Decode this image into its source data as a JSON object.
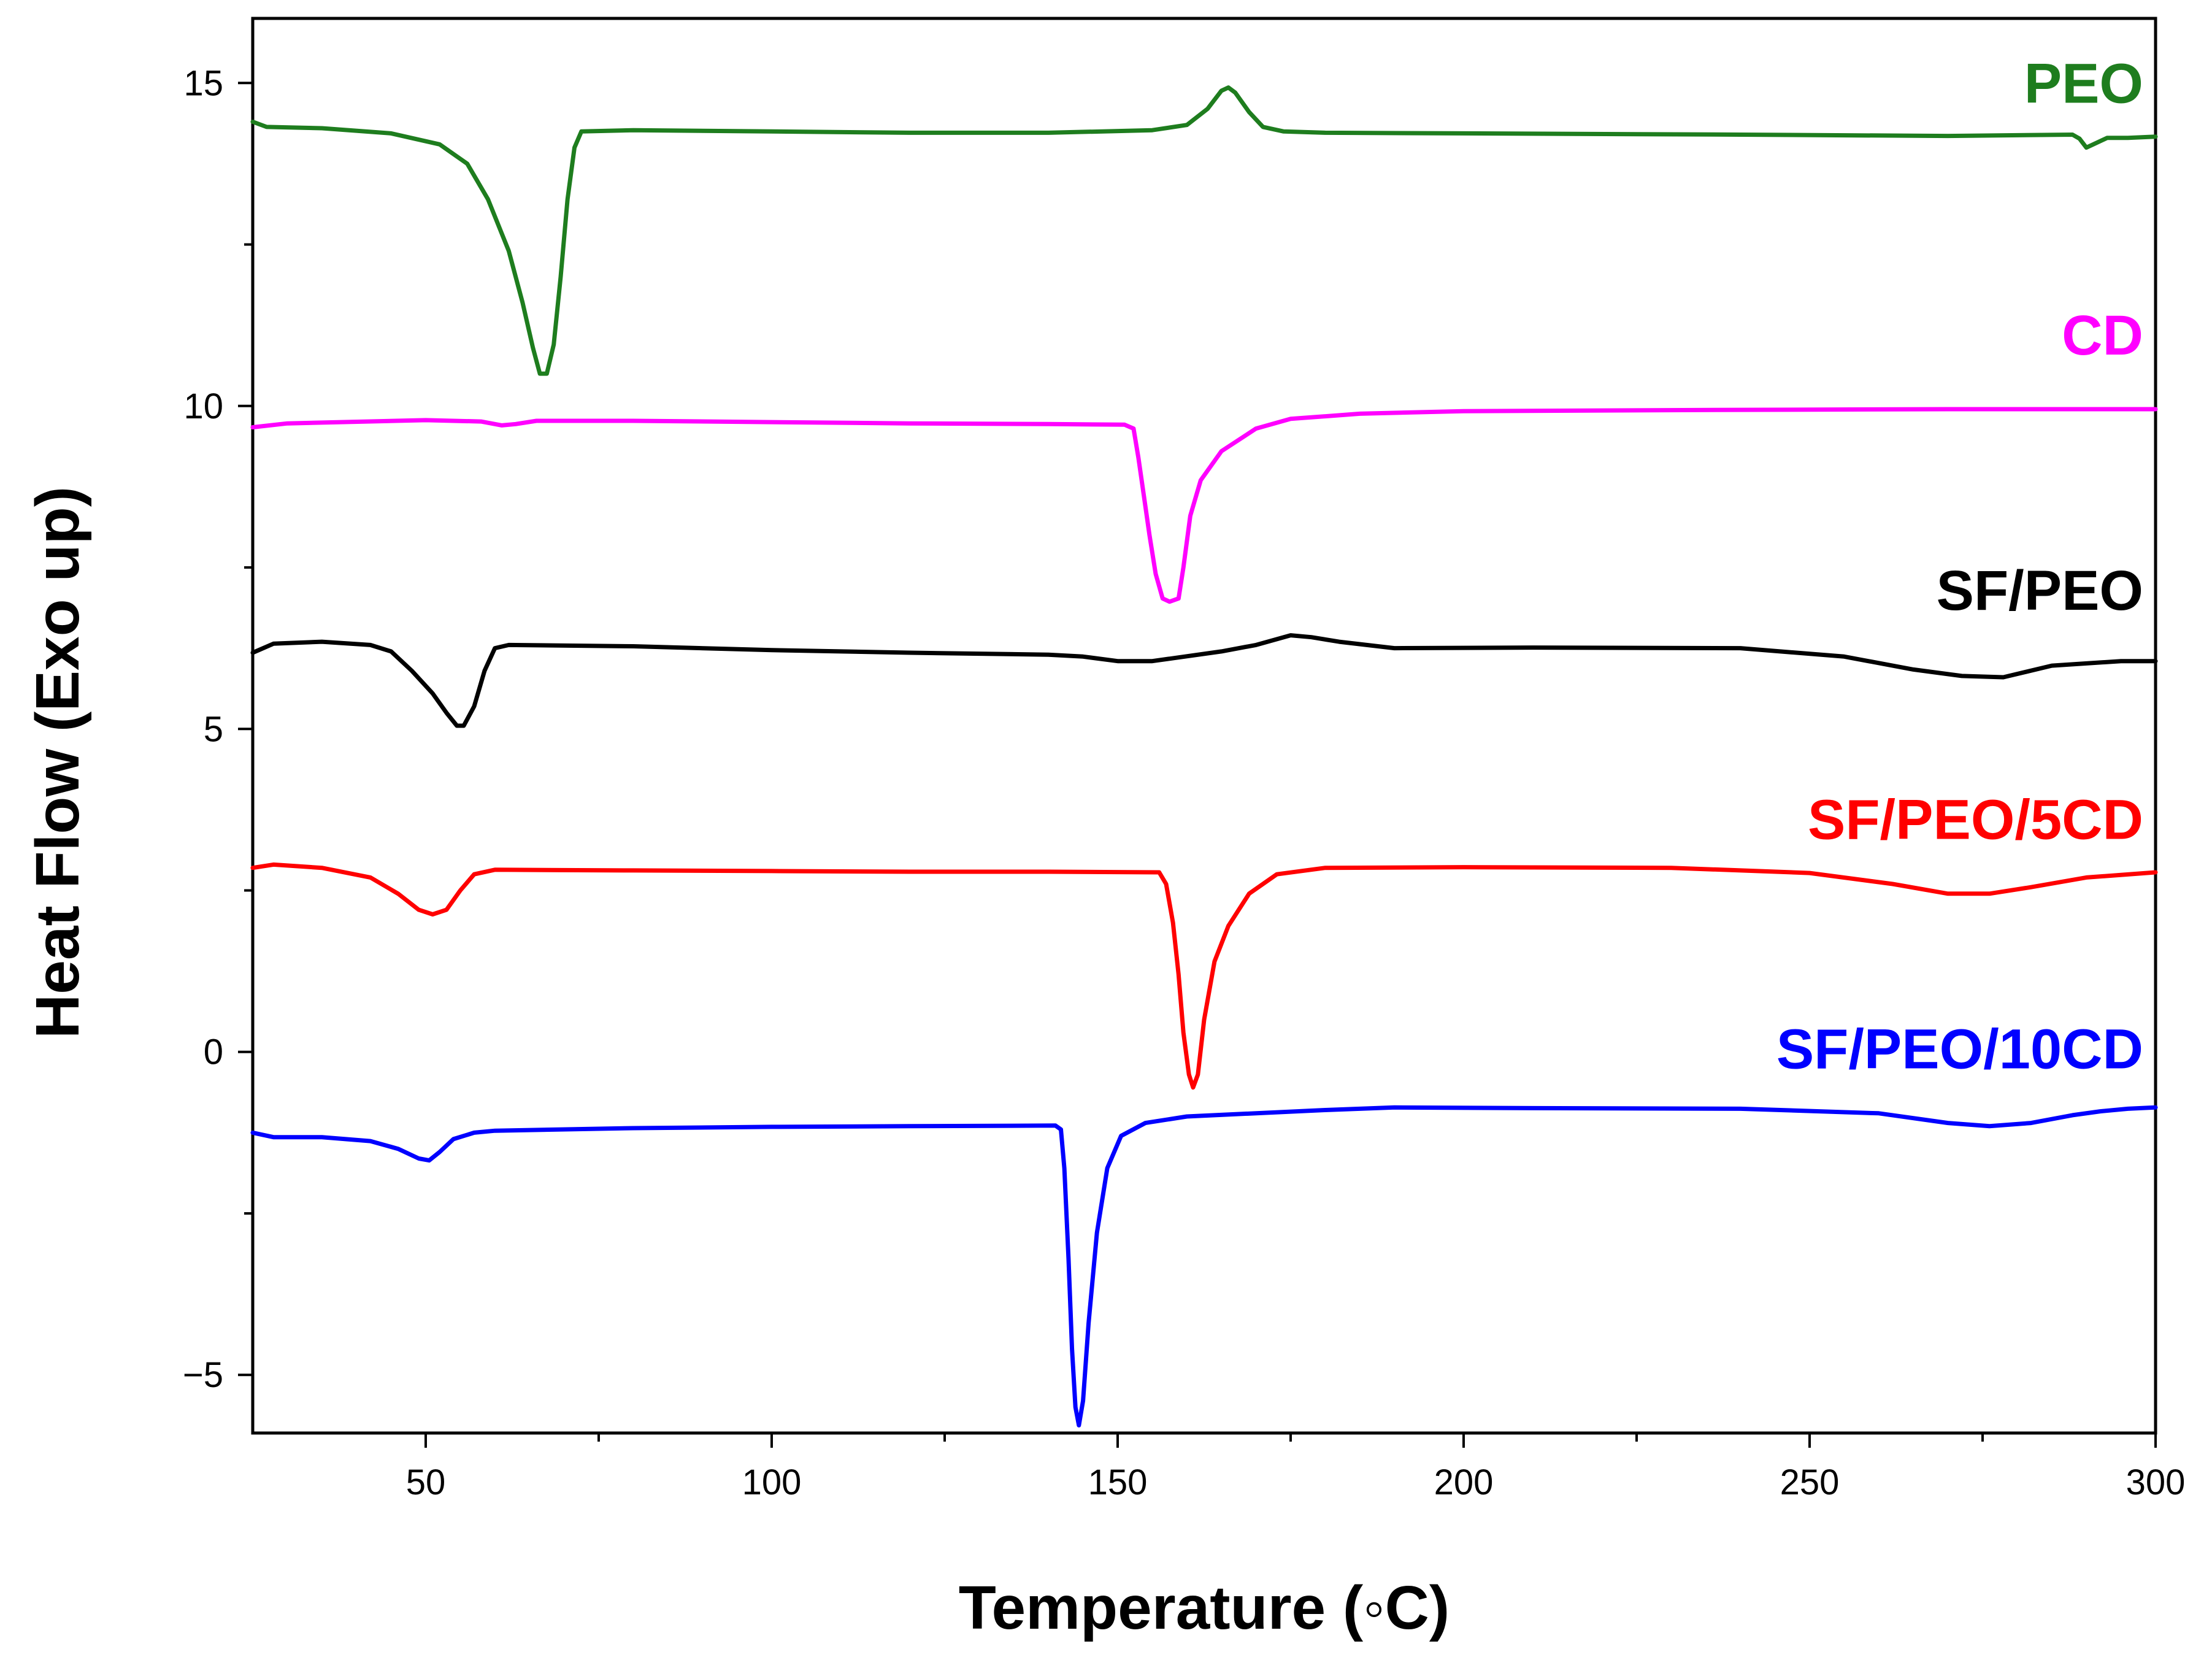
{
  "chart_data": {
    "type": "line",
    "title": "",
    "xlabel": "Temperature (◦C)",
    "ylabel": "Heat Flow (Exo up)",
    "xlim": [
      25,
      300
    ],
    "ylim": [
      -5.9,
      16
    ],
    "x_ticks": [
      50,
      100,
      150,
      200,
      250,
      300
    ],
    "x_tick_labels": [
      "50",
      "100",
      "150",
      "200",
      "250",
      "300"
    ],
    "y_ticks": [
      -5,
      0,
      5,
      10,
      15
    ],
    "y_tick_labels": [
      "−5",
      "0",
      "5",
      "10",
      "15"
    ],
    "grid": false,
    "series": [
      {
        "name": "PEO",
        "color": "#1e7d1e",
        "label_value": [
          300,
          15.0
        ],
        "points": [
          [
            25,
            14.4
          ],
          [
            27,
            14.32
          ],
          [
            35,
            14.3
          ],
          [
            45,
            14.22
          ],
          [
            52,
            14.05
          ],
          [
            56,
            13.75
          ],
          [
            59,
            13.2
          ],
          [
            62,
            12.4
          ],
          [
            64,
            11.6
          ],
          [
            65.5,
            10.9
          ],
          [
            66.5,
            10.5
          ],
          [
            67.5,
            10.5
          ],
          [
            68.5,
            10.95
          ],
          [
            69.5,
            12.0
          ],
          [
            70.5,
            13.2
          ],
          [
            71.5,
            14.0
          ],
          [
            72.5,
            14.25
          ],
          [
            80,
            14.27
          ],
          [
            100,
            14.25
          ],
          [
            120,
            14.23
          ],
          [
            140,
            14.23
          ],
          [
            155,
            14.27
          ],
          [
            160,
            14.35
          ],
          [
            163,
            14.6
          ],
          [
            165,
            14.88
          ],
          [
            166,
            14.93
          ],
          [
            167,
            14.85
          ],
          [
            169,
            14.55
          ],
          [
            171,
            14.32
          ],
          [
            174,
            14.25
          ],
          [
            180,
            14.23
          ],
          [
            200,
            14.22
          ],
          [
            240,
            14.2
          ],
          [
            270,
            14.18
          ],
          [
            288,
            14.2
          ],
          [
            289,
            14.14
          ],
          [
            290,
            14.0
          ],
          [
            291,
            14.05
          ],
          [
            293,
            14.15
          ],
          [
            296,
            14.15
          ],
          [
            300,
            14.17
          ]
        ]
      },
      {
        "name": "CD",
        "color": "#ff00ff",
        "label_value": [
          300,
          11.1
        ],
        "points": [
          [
            25,
            9.67
          ],
          [
            30,
            9.73
          ],
          [
            50,
            9.78
          ],
          [
            58,
            9.76
          ],
          [
            61,
            9.7
          ],
          [
            63,
            9.72
          ],
          [
            66,
            9.77
          ],
          [
            80,
            9.77
          ],
          [
            100,
            9.75
          ],
          [
            120,
            9.73
          ],
          [
            140,
            9.72
          ],
          [
            151,
            9.71
          ],
          [
            152.3,
            9.65
          ],
          [
            153,
            9.2
          ],
          [
            153.8,
            8.6
          ],
          [
            154.6,
            8.0
          ],
          [
            155.5,
            7.4
          ],
          [
            156.5,
            7.02
          ],
          [
            157.5,
            6.97
          ],
          [
            158.8,
            7.02
          ],
          [
            159.5,
            7.5
          ],
          [
            160.5,
            8.3
          ],
          [
            162,
            8.85
          ],
          [
            165,
            9.3
          ],
          [
            170,
            9.65
          ],
          [
            175,
            9.8
          ],
          [
            185,
            9.88
          ],
          [
            200,
            9.92
          ],
          [
            240,
            9.94
          ],
          [
            270,
            9.95
          ],
          [
            300,
            9.95
          ]
        ]
      },
      {
        "name": "SF/PEO",
        "color": "#000000",
        "label_value": [
          300,
          7.15
        ],
        "points": [
          [
            25,
            6.18
          ],
          [
            28,
            6.32
          ],
          [
            35,
            6.35
          ],
          [
            42,
            6.3
          ],
          [
            45,
            6.2
          ],
          [
            48,
            5.9
          ],
          [
            51,
            5.55
          ],
          [
            53,
            5.25
          ],
          [
            54.5,
            5.05
          ],
          [
            55.5,
            5.05
          ],
          [
            57,
            5.35
          ],
          [
            58.5,
            5.9
          ],
          [
            60,
            6.25
          ],
          [
            62,
            6.3
          ],
          [
            80,
            6.28
          ],
          [
            100,
            6.22
          ],
          [
            120,
            6.18
          ],
          [
            140,
            6.15
          ],
          [
            145,
            6.12
          ],
          [
            150,
            6.05
          ],
          [
            155,
            6.05
          ],
          [
            165,
            6.2
          ],
          [
            170,
            6.3
          ],
          [
            175,
            6.45
          ],
          [
            178,
            6.42
          ],
          [
            182,
            6.35
          ],
          [
            190,
            6.25
          ],
          [
            210,
            6.26
          ],
          [
            240,
            6.25
          ],
          [
            255,
            6.12
          ],
          [
            265,
            5.92
          ],
          [
            272,
            5.82
          ],
          [
            278,
            5.8
          ],
          [
            285,
            5.98
          ],
          [
            295,
            6.05
          ],
          [
            300,
            6.05
          ]
        ]
      },
      {
        "name": "SF/PEO/5CD",
        "color": "#ff0000",
        "label_value": [
          300,
          3.6
        ],
        "points": [
          [
            25,
            2.85
          ],
          [
            28,
            2.9
          ],
          [
            35,
            2.85
          ],
          [
            42,
            2.7
          ],
          [
            46,
            2.45
          ],
          [
            49,
            2.2
          ],
          [
            51,
            2.13
          ],
          [
            53,
            2.2
          ],
          [
            55,
            2.5
          ],
          [
            57,
            2.75
          ],
          [
            60,
            2.82
          ],
          [
            80,
            2.81
          ],
          [
            100,
            2.8
          ],
          [
            120,
            2.79
          ],
          [
            140,
            2.79
          ],
          [
            156,
            2.78
          ],
          [
            157,
            2.6
          ],
          [
            158,
            2.0
          ],
          [
            158.8,
            1.2
          ],
          [
            159.5,
            0.3
          ],
          [
            160.3,
            -0.35
          ],
          [
            160.9,
            -0.55
          ],
          [
            161.6,
            -0.35
          ],
          [
            162.5,
            0.5
          ],
          [
            164,
            1.4
          ],
          [
            166,
            1.95
          ],
          [
            169,
            2.45
          ],
          [
            173,
            2.75
          ],
          [
            180,
            2.85
          ],
          [
            200,
            2.86
          ],
          [
            230,
            2.85
          ],
          [
            250,
            2.77
          ],
          [
            262,
            2.6
          ],
          [
            270,
            2.45
          ],
          [
            276,
            2.45
          ],
          [
            282,
            2.55
          ],
          [
            290,
            2.7
          ],
          [
            300,
            2.78
          ]
        ]
      },
      {
        "name": "SF/PEO/10CD",
        "color": "#0000ff",
        "label_value": [
          300,
          0.05
        ],
        "points": [
          [
            25,
            -1.25
          ],
          [
            28,
            -1.32
          ],
          [
            35,
            -1.32
          ],
          [
            42,
            -1.38
          ],
          [
            46,
            -1.5
          ],
          [
            49,
            -1.65
          ],
          [
            50.5,
            -1.68
          ],
          [
            52,
            -1.55
          ],
          [
            54,
            -1.35
          ],
          [
            57,
            -1.25
          ],
          [
            60,
            -1.22
          ],
          [
            80,
            -1.18
          ],
          [
            100,
            -1.16
          ],
          [
            120,
            -1.15
          ],
          [
            141,
            -1.14
          ],
          [
            141.8,
            -1.2
          ],
          [
            142.3,
            -1.8
          ],
          [
            142.9,
            -3.2
          ],
          [
            143.4,
            -4.6
          ],
          [
            143.9,
            -5.5
          ],
          [
            144.4,
            -5.78
          ],
          [
            145,
            -5.4
          ],
          [
            145.8,
            -4.2
          ],
          [
            147,
            -2.8
          ],
          [
            148.5,
            -1.8
          ],
          [
            150.5,
            -1.3
          ],
          [
            154,
            -1.1
          ],
          [
            160,
            -1.0
          ],
          [
            180,
            -0.9
          ],
          [
            190,
            -0.86
          ],
          [
            210,
            -0.87
          ],
          [
            240,
            -0.88
          ],
          [
            260,
            -0.95
          ],
          [
            270,
            -1.1
          ],
          [
            276,
            -1.15
          ],
          [
            282,
            -1.1
          ],
          [
            288,
            -0.98
          ],
          [
            292,
            -0.92
          ],
          [
            296,
            -0.88
          ],
          [
            300,
            -0.86
          ]
        ]
      }
    ]
  }
}
